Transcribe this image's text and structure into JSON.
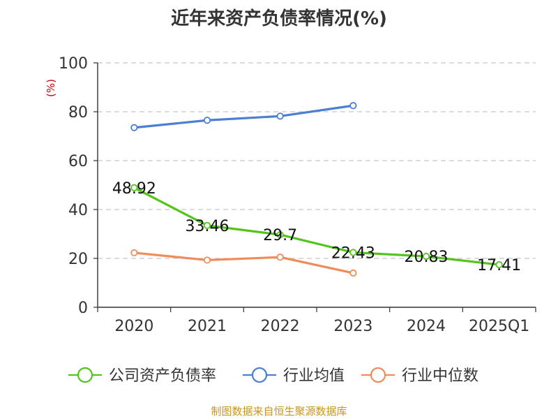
{
  "chart_data": {
    "type": "line",
    "title": "近年来资产负债率情况(%)",
    "ylabel": "(%)",
    "xlabel": "",
    "categories": [
      "2020",
      "2021",
      "2022",
      "2023",
      "2024",
      "2025Q1"
    ],
    "ylim": [
      0,
      100
    ],
    "yticks": [
      "0",
      "20",
      "40",
      "60",
      "80",
      "100"
    ],
    "grid": true,
    "legend_position": "bottom",
    "series": [
      {
        "name": "公司资产负债率",
        "color": "#52c41a",
        "values": [
          48.92,
          33.46,
          29.7,
          22.43,
          20.83,
          17.41
        ],
        "labels": [
          "48.92",
          "33.46",
          "29.7",
          "22.43",
          "20.83",
          "17.41"
        ]
      },
      {
        "name": "行业均值",
        "color": "#4a7fd4",
        "values": [
          73.5,
          76.5,
          78.2,
          82.5,
          null,
          null
        ],
        "labels": []
      },
      {
        "name": "行业中位数",
        "color": "#f08c5a",
        "values": [
          22.3,
          19.3,
          20.5,
          14.0,
          null,
          null
        ],
        "labels": []
      }
    ]
  },
  "source_text": "制图数据来自恒生聚源数据库"
}
